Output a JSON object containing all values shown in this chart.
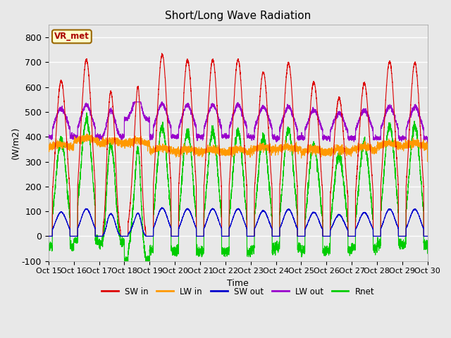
{
  "title": "Short/Long Wave Radiation",
  "xlabel": "Time",
  "ylabel": "(W/m2)",
  "ylim": [
    -100,
    850
  ],
  "yticks": [
    -100,
    0,
    100,
    200,
    300,
    400,
    500,
    600,
    700,
    800
  ],
  "xtick_labels": [
    "Oct 15",
    "Oct 16",
    "Oct 17",
    "Oct 18",
    "Oct 19",
    "Oct 20",
    "Oct 21",
    "Oct 22",
    "Oct 23",
    "Oct 24",
    "Oct 25",
    "Oct 26",
    "Oct 27",
    "Oct 28",
    "Oct 29",
    "Oct 30"
  ],
  "series_colors": {
    "SW in": "#dd0000",
    "LW in": "#ff9900",
    "SW out": "#0000cc",
    "LW out": "#9900cc",
    "Rnet": "#00cc00"
  },
  "legend_items": [
    "SW in",
    "LW in",
    "SW out",
    "LW out",
    "Rnet"
  ],
  "tag_text": "VR_met",
  "tag_color": "#aa0000",
  "tag_bg": "#ffffcc",
  "plot_bg": "#e8e8e8",
  "n_days": 15,
  "points_per_day": 288,
  "start_day": 15
}
